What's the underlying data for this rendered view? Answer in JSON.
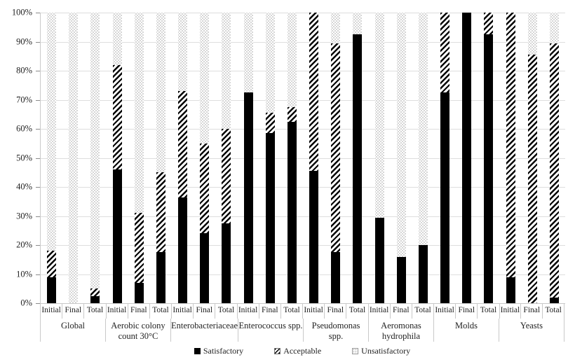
{
  "chart_data": {
    "type": "bar",
    "stacked": true,
    "percent_scale": true,
    "title": "",
    "xlabel": "",
    "ylabel": "",
    "ylim": [
      0,
      100
    ],
    "grid": "horizontal",
    "yticks": [
      "100%",
      "90%",
      "80%",
      "70%",
      "60%",
      "50%",
      "40%",
      "30%",
      "20%",
      "10%",
      "0%"
    ],
    "categories_per_group": [
      "Initial",
      "Final",
      "Total"
    ],
    "series_names": [
      "Satisfactory",
      "Acceptable",
      "Unsatisfactory"
    ],
    "groups": [
      {
        "label": "Global",
        "bars": [
          {
            "category": "Initial",
            "satisfactory": 9,
            "acceptable": 9,
            "unsatisfactory": 82
          },
          {
            "category": "Final",
            "satisfactory": 0,
            "acceptable": 0,
            "unsatisfactory": 100
          },
          {
            "category": "Total",
            "satisfactory": 2.5,
            "acceptable": 2.5,
            "unsatisfactory": 95
          }
        ]
      },
      {
        "label": "Aerobic colony count 30°C",
        "bars": [
          {
            "category": "Initial",
            "satisfactory": 46,
            "acceptable": 36,
            "unsatisfactory": 18
          },
          {
            "category": "Final",
            "satisfactory": 7,
            "acceptable": 24,
            "unsatisfactory": 69
          },
          {
            "category": "Total",
            "satisfactory": 17.5,
            "acceptable": 27.5,
            "unsatisfactory": 55
          }
        ]
      },
      {
        "label": "Enterobacteriaceae",
        "bars": [
          {
            "category": "Initial",
            "satisfactory": 36.5,
            "acceptable": 36.5,
            "unsatisfactory": 27
          },
          {
            "category": "Final",
            "satisfactory": 24,
            "acceptable": 31,
            "unsatisfactory": 45
          },
          {
            "category": "Total",
            "satisfactory": 27.5,
            "acceptable": 32.5,
            "unsatisfactory": 40
          }
        ]
      },
      {
        "label": "Enterococcus spp.",
        "bars": [
          {
            "category": "Initial",
            "satisfactory": 72.5,
            "acceptable": 0,
            "unsatisfactory": 27.5
          },
          {
            "category": "Final",
            "satisfactory": 58.5,
            "acceptable": 7,
            "unsatisfactory": 34.5
          },
          {
            "category": "Total",
            "satisfactory": 62.5,
            "acceptable": 5,
            "unsatisfactory": 32.5
          }
        ]
      },
      {
        "label": "Pseudomonas spp.",
        "bars": [
          {
            "category": "Initial",
            "satisfactory": 45.5,
            "acceptable": 54.5,
            "unsatisfactory": 0
          },
          {
            "category": "Final",
            "satisfactory": 17.5,
            "acceptable": 72,
            "unsatisfactory": 10.5
          },
          {
            "category": "Total",
            "satisfactory": 92.5,
            "acceptable": 0,
            "unsatisfactory": 7.5
          }
        ]
      },
      {
        "label": "Aeromonas hydrophila",
        "bars": [
          {
            "category": "Initial",
            "satisfactory": 29.5,
            "acceptable": 0,
            "unsatisfactory": 70.5
          },
          {
            "category": "Final",
            "satisfactory": 16,
            "acceptable": 0,
            "unsatisfactory": 84
          },
          {
            "category": "Total",
            "satisfactory": 20,
            "acceptable": 0,
            "unsatisfactory": 80
          }
        ]
      },
      {
        "label": "Molds",
        "bars": [
          {
            "category": "Initial",
            "satisfactory": 72.5,
            "acceptable": 27.5,
            "unsatisfactory": 0
          },
          {
            "category": "Final",
            "satisfactory": 100,
            "acceptable": 0,
            "unsatisfactory": 0
          },
          {
            "category": "Total",
            "satisfactory": 92.5,
            "acceptable": 7.5,
            "unsatisfactory": 0
          }
        ]
      },
      {
        "label": "Yeasts",
        "bars": [
          {
            "category": "Initial",
            "satisfactory": 9,
            "acceptable": 91,
            "unsatisfactory": 0
          },
          {
            "category": "Final",
            "satisfactory": 0,
            "acceptable": 85.5,
            "unsatisfactory": 14.5
          },
          {
            "category": "Total",
            "satisfactory": 2,
            "acceptable": 87.5,
            "unsatisfactory": 10.5
          }
        ]
      }
    ],
    "legend": {
      "position": "bottom-center",
      "items": [
        {
          "label": "Satisfactory",
          "pattern": "solid-black"
        },
        {
          "label": "Acceptable",
          "pattern": "diagonal-hatch"
        },
        {
          "label": "Unsatisfactory",
          "pattern": "light-dots"
        }
      ]
    },
    "colors": {
      "satisfactory_fill": "#000000",
      "acceptable_hatch_stroke": "#000000",
      "unsatisfactory_dots": "#a3a3a3",
      "gridline": "#dedede",
      "axis": "#8a8a8a",
      "background": "#ffffff"
    }
  }
}
